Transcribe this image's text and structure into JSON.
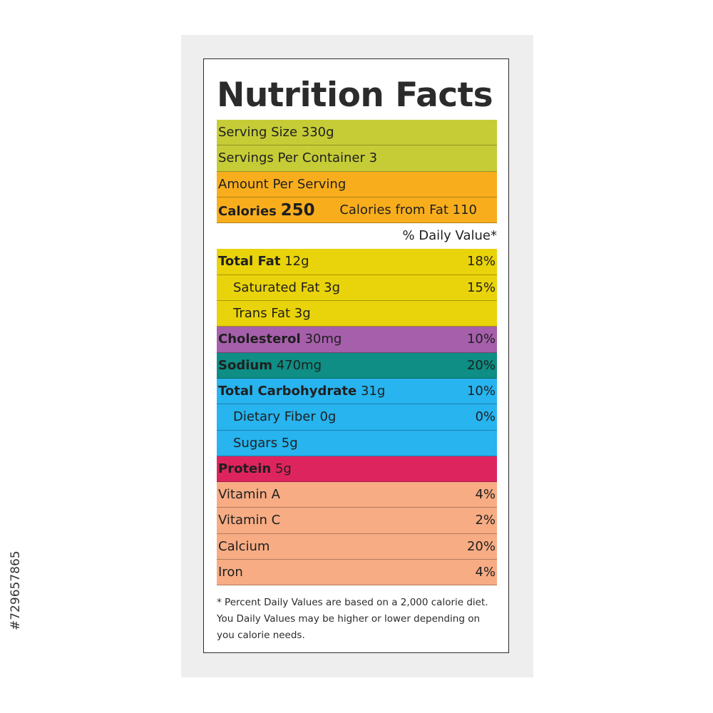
{
  "title": "Nutrition Facts",
  "colors": {
    "serving": "#c6cc36",
    "amount": "#f8ae1c",
    "fat": "#e9d30b",
    "cholesterol": "#a65fab",
    "sodium": "#0e8e84",
    "carbohydrate": "#27b4ef",
    "protein": "#de245e",
    "vitamins": "#f7ac84"
  },
  "serving": {
    "size": "Serving Size 330g",
    "per_container": "Servings Per Container 3"
  },
  "amount_per_serving": "Amount Per Serving",
  "calories": {
    "label": "Calories",
    "value": "250",
    "from_fat": "Calories from Fat 110"
  },
  "daily_value_header": "% Daily Value*",
  "nutrients": {
    "total_fat": {
      "label": "Total Fat",
      "amount": "12g",
      "dv": "18%"
    },
    "saturated_fat": {
      "label": "Saturated Fat 3g",
      "dv": "15%"
    },
    "trans_fat": {
      "label": "Trans Fat 3g"
    },
    "cholesterol": {
      "label": "Cholesterol",
      "amount": "30mg",
      "dv": "10%"
    },
    "sodium": {
      "label": "Sodium",
      "amount": "470mg",
      "dv": "20%"
    },
    "total_carbohydrate": {
      "label": "Total Carbohydrate",
      "amount": "31g",
      "dv": "10%"
    },
    "dietary_fiber": {
      "label": "Dietary Fiber 0g",
      "dv": "0%"
    },
    "sugars": {
      "label": "Sugars 5g"
    },
    "protein": {
      "label": "Protein",
      "amount": "5g"
    }
  },
  "vitamins": [
    {
      "label": "Vitamin A",
      "dv": "4%"
    },
    {
      "label": "Vitamin C",
      "dv": "2%"
    },
    {
      "label": "Calcium",
      "dv": "20%"
    },
    {
      "label": "Iron",
      "dv": "4%"
    }
  ],
  "footnote": [
    "* Percent Daily Values are based on a 2,000 calorie diet.",
    "You Daily Values may be higher or lower depending on",
    "you calorie needs."
  ],
  "stock_id": "#729657865"
}
